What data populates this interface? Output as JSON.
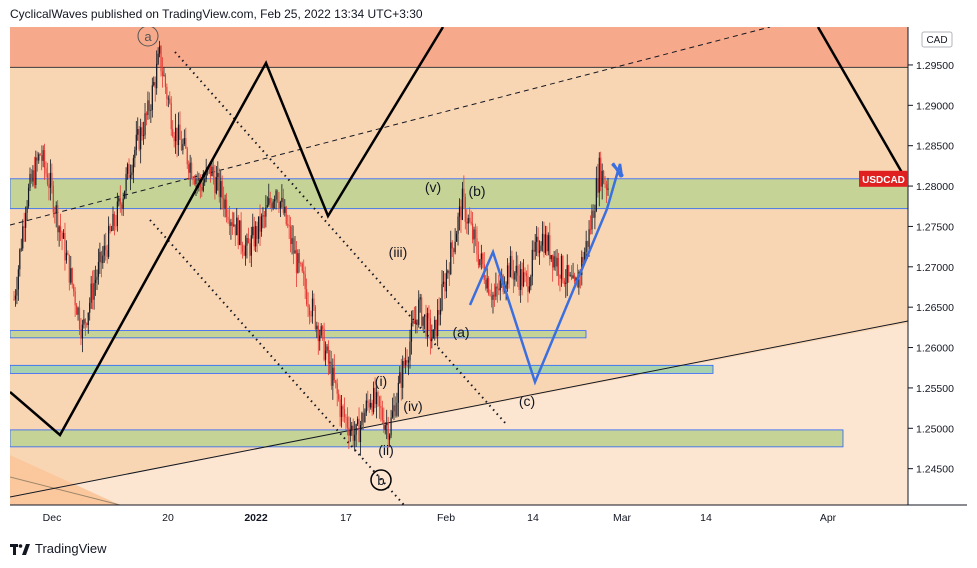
{
  "header": {
    "publisher_line": "CyclicalWaves published on TradingView.com, Feb 25, 2022 13:34 UTC+3:30"
  },
  "footer": {
    "brand": "TradingView",
    "logo_icon": "tradingview-logo-icon"
  },
  "colors": {
    "candle_up": "#131722",
    "candle_down": "#e53935",
    "zone_green": "#c5d396",
    "zone_teal": "#a8d2ad",
    "band_top": "#f7a98b",
    "band_mid": "#f9d6b3",
    "band_low": "#fce6d1",
    "wave_black": "#000000",
    "wave_blue": "#3b6fe0",
    "price_label_bg": "#e02020"
  },
  "chart_data": {
    "type": "candlestick",
    "symbol": "USDCAD",
    "currency": "CAD",
    "x_labels": [
      "Dec",
      "20",
      "2022",
      "17",
      "Feb",
      "14",
      "Mar",
      "14",
      "Apr"
    ],
    "y_ticks": [
      1.245,
      1.25,
      1.255,
      1.26,
      1.265,
      1.27,
      1.275,
      1.28,
      1.285,
      1.29,
      1.295
    ],
    "y_tick_labels": [
      "1.24500",
      "1.25000",
      "1.25500",
      "1.26000",
      "1.26500",
      "1.27000",
      "1.27500",
      "1.28000",
      "1.28500",
      "1.29000",
      "1.29500"
    ],
    "y_range": [
      1.2405,
      1.2997
    ],
    "last_price_label": "USDCAD",
    "last_price": 1.2809,
    "candles": {
      "start": "2021-11-29",
      "timeframe": "4h",
      "close_path": [
        [
          1.266,
          0
        ],
        [
          1.27,
          3
        ],
        [
          1.278,
          8
        ],
        [
          1.284,
          18
        ],
        [
          1.28,
          25
        ],
        [
          1.272,
          35
        ],
        [
          1.262,
          47
        ],
        [
          1.268,
          55
        ],
        [
          1.276,
          70
        ],
        [
          1.284,
          82
        ],
        [
          1.289,
          92
        ],
        [
          1.296,
          100
        ],
        [
          1.287,
          110
        ],
        [
          1.284,
          118
        ],
        [
          1.28,
          128
        ],
        [
          1.282,
          135
        ],
        [
          1.278,
          145
        ],
        [
          1.272,
          160
        ],
        [
          1.276,
          172
        ],
        [
          1.28,
          180
        ],
        [
          1.27,
          195
        ],
        [
          1.262,
          210
        ],
        [
          1.252,
          225
        ],
        [
          1.249,
          235
        ],
        [
          1.254,
          245
        ],
        [
          1.25,
          258
        ],
        [
          1.258,
          268
        ],
        [
          1.265,
          278
        ],
        [
          1.261,
          288
        ],
        [
          1.27,
          298
        ],
        [
          1.278,
          308
        ],
        [
          1.272,
          318
        ],
        [
          1.266,
          330
        ],
        [
          1.27,
          340
        ],
        [
          1.268,
          352
        ],
        [
          1.274,
          362
        ],
        [
          1.27,
          375
        ],
        [
          1.267,
          385
        ],
        [
          1.274,
          395
        ],
        [
          1.282,
          402
        ],
        [
          1.28,
          408
        ]
      ]
    },
    "zones": [
      {
        "from": 1.2947,
        "to": 1.2997,
        "kind": "band-top"
      },
      {
        "from": 1.2772,
        "to": 1.2809,
        "kind": "green"
      },
      {
        "from": 1.2612,
        "to": 1.2621,
        "kind": "green"
      },
      {
        "from": 1.2568,
        "to": 1.2578,
        "kind": "teal"
      },
      {
        "from": 1.2477,
        "to": 1.2498,
        "kind": "green"
      }
    ],
    "wave_labels": [
      "a",
      "b",
      "(v)",
      "(b)",
      "(iii)",
      "(a)",
      "(i)",
      "(iv)",
      "(ii)",
      "(c)"
    ]
  }
}
